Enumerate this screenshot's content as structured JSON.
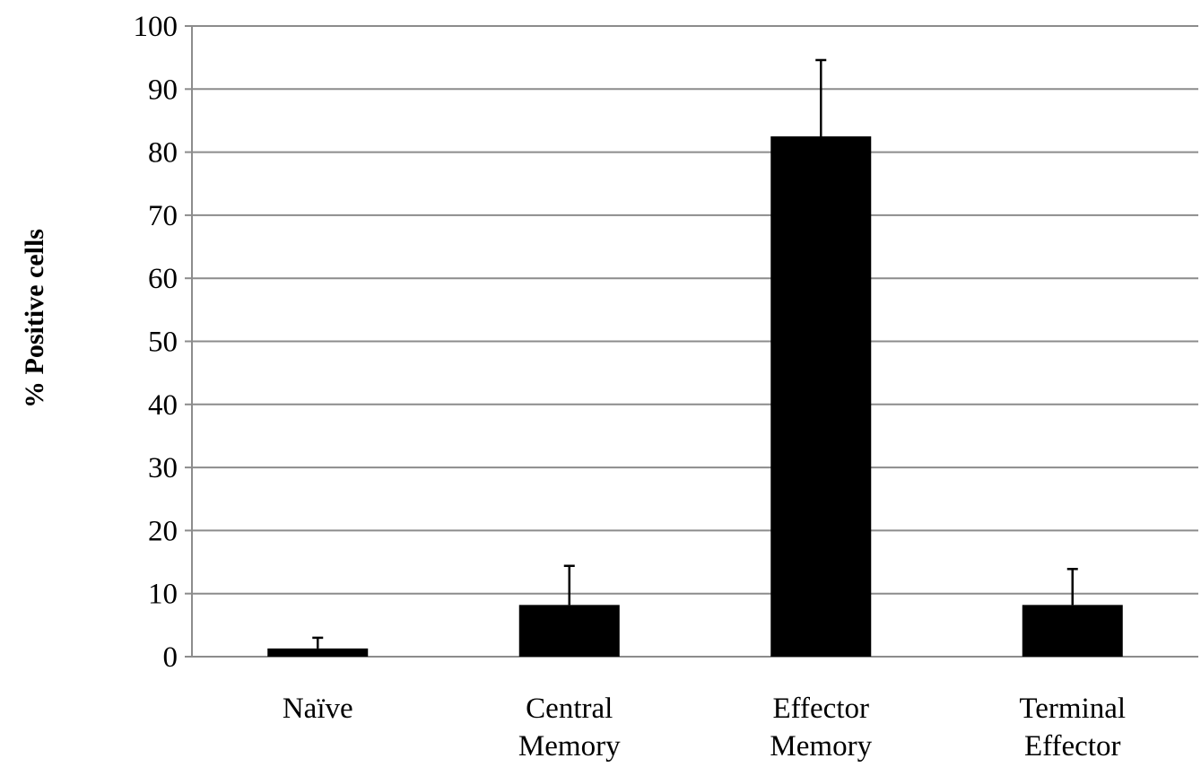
{
  "chart_data": {
    "type": "bar",
    "title": "",
    "xlabel": "",
    "ylabel": "% Positive cells",
    "categories": [
      [
        "Naïve"
      ],
      [
        "Central",
        "Memory"
      ],
      [
        "Effector",
        "Memory"
      ],
      [
        "Terminal",
        "Effector"
      ]
    ],
    "values": [
      1.3,
      8.2,
      82.5,
      8.2
    ],
    "error_upper": [
      1.7,
      6.2,
      12.1,
      5.7
    ],
    "ylim": [
      0,
      100
    ],
    "yticks": [
      0,
      10,
      20,
      30,
      40,
      50,
      60,
      70,
      80,
      90,
      100
    ],
    "grid": true,
    "legend": "none",
    "colors": {
      "bar": "#000000",
      "grid": "#8c8c8c",
      "axis": "#8c8c8c",
      "error_bar": "#000000",
      "text": "#000000"
    }
  }
}
